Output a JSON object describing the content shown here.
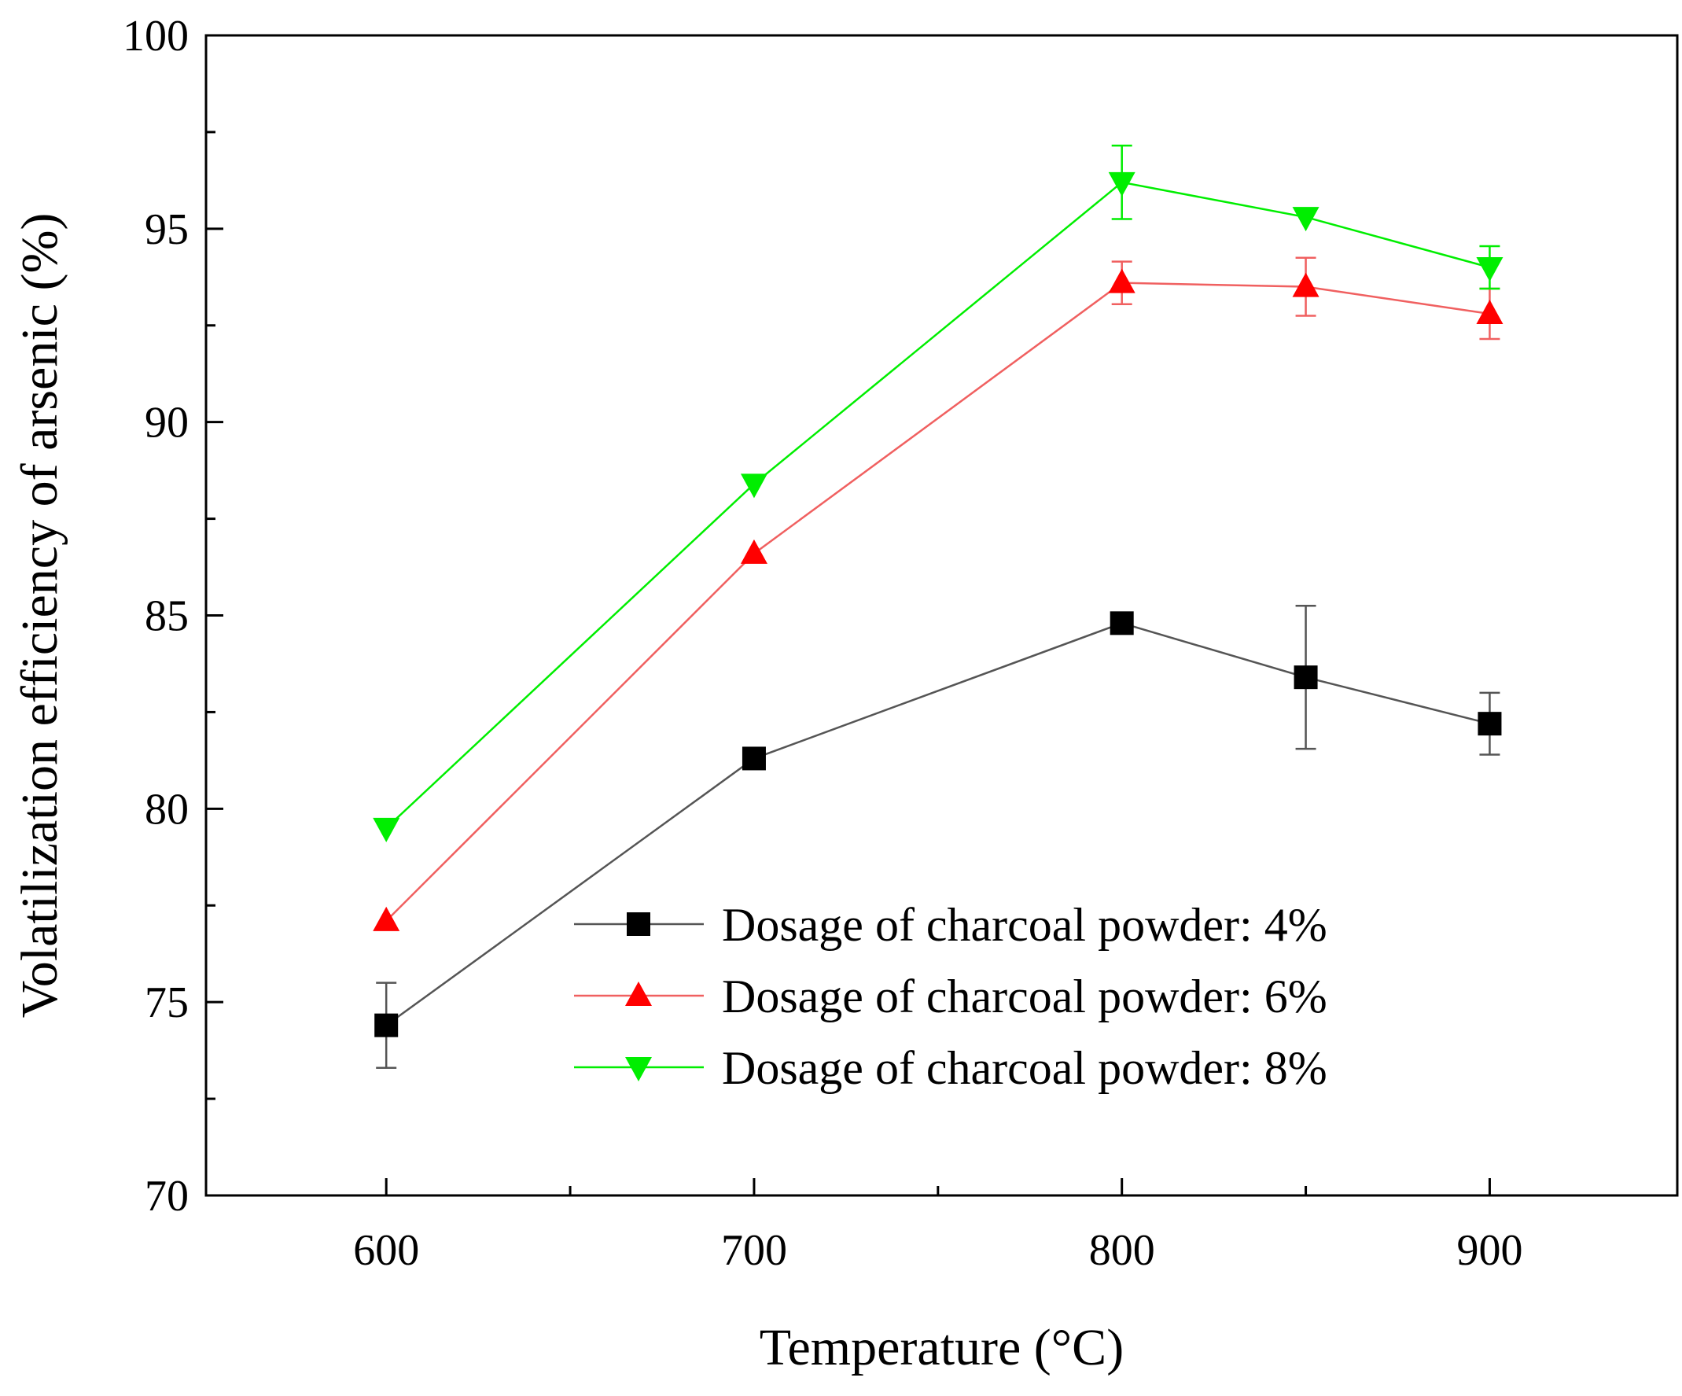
{
  "chart_data": {
    "type": "line",
    "title": "",
    "xlabel": "Temperature (°C)",
    "ylabel": "Volatilization efficiency of arsenic (%)",
    "xlim": [
      551,
      951
    ],
    "ylim": [
      70,
      100
    ],
    "x_ticks": [
      600,
      700,
      800,
      900
    ],
    "x_minor_ticks": [
      650,
      750,
      850
    ],
    "y_ticks": [
      70,
      75,
      80,
      85,
      90,
      95,
      100
    ],
    "y_minor_ticks": [
      72.5,
      77.5,
      82.5,
      87.5,
      92.5,
      97.5
    ],
    "grid": false,
    "legend_position": "lower-right",
    "x": [
      600,
      700,
      800,
      850,
      900
    ],
    "series": [
      {
        "name": "Dosage of charcoal powder: 4%",
        "color": "#000000",
        "line_color": "#555555",
        "marker": "square",
        "values": [
          74.4,
          81.3,
          84.8,
          83.4,
          82.2
        ],
        "errors": [
          1.1,
          0.0,
          0.0,
          1.85,
          0.8
        ]
      },
      {
        "name": "Dosage of charcoal powder: 6%",
        "color": "#ff0000",
        "line_color": "#f06060",
        "marker": "triangle-up",
        "values": [
          77.1,
          86.6,
          93.6,
          93.5,
          92.8
        ],
        "errors": [
          0.0,
          0.0,
          0.55,
          0.75,
          0.65
        ]
      },
      {
        "name": "Dosage of charcoal powder: 8%",
        "color": "#00ee00",
        "line_color": "#00ee00",
        "marker": "triangle-down",
        "values": [
          79.5,
          88.4,
          96.2,
          95.3,
          94.0
        ],
        "errors": [
          0.0,
          0.0,
          0.95,
          0.0,
          0.55
        ]
      }
    ]
  }
}
